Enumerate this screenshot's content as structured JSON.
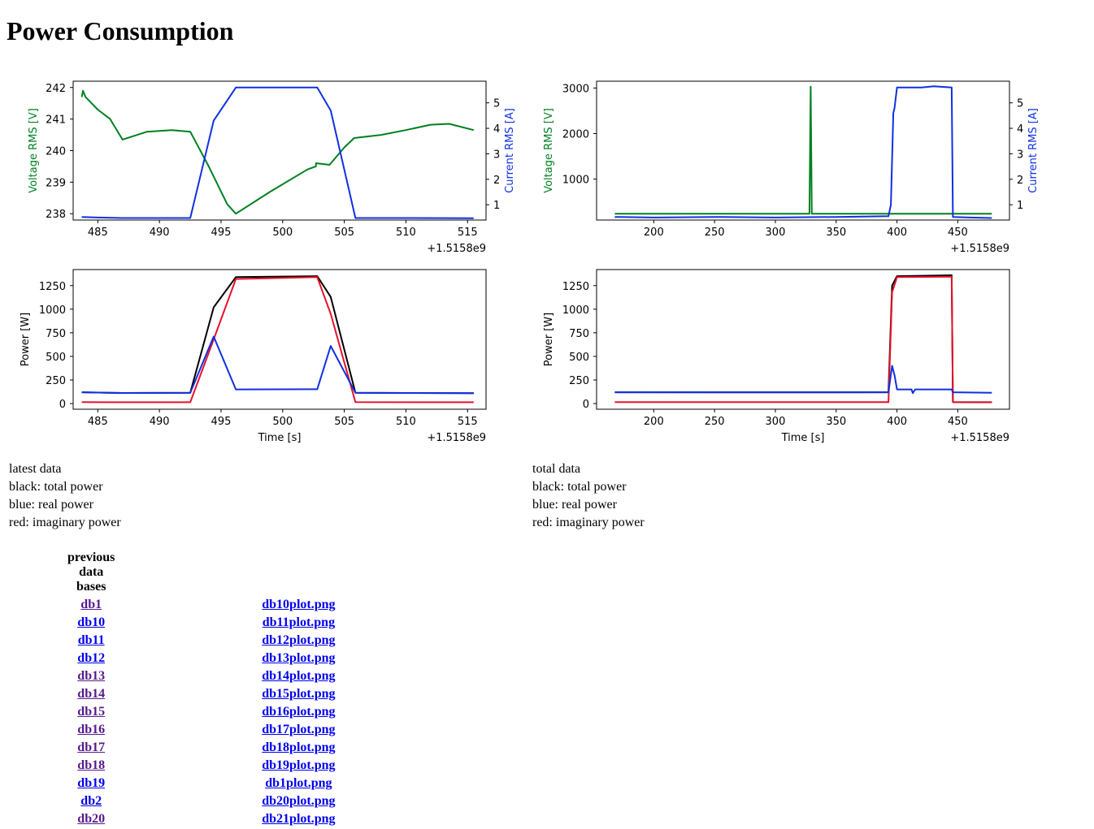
{
  "page": {
    "title": "Power Consumption"
  },
  "colors": {
    "green": "#008020",
    "blue": "#1030e0",
    "red": "#e8102a",
    "black": "#000000",
    "visited": "#551a8b",
    "link": "#0000ee"
  },
  "plots": {
    "latest_voltage": {
      "xlim": [
        483,
        516.5
      ],
      "xticks": [
        485,
        490,
        495,
        500,
        505,
        510,
        515
      ],
      "offset": "+1.5158e9",
      "ylim": [
        237.8,
        242.2
      ],
      "yticks": [
        238,
        239,
        240,
        241,
        242
      ],
      "ylabel": "Voltage RMS [V]",
      "y2lim": [
        0.4,
        5.85
      ],
      "y2ticks": [
        1,
        2,
        3,
        4,
        5
      ],
      "y2label": "Current RMS [A]",
      "voltage": [
        [
          483.7,
          241.7
        ],
        [
          483.8,
          241.9
        ],
        [
          484,
          241.7
        ],
        [
          485,
          241.3
        ],
        [
          486,
          241
        ],
        [
          487,
          240.35
        ],
        [
          489,
          240.6
        ],
        [
          491,
          240.65
        ],
        [
          492.5,
          240.6
        ],
        [
          494,
          239.5
        ],
        [
          495.5,
          238.3
        ],
        [
          496.2,
          238
        ],
        [
          499,
          238.7
        ],
        [
          502,
          239.4
        ],
        [
          502.7,
          239.5
        ],
        [
          502.7,
          239.6
        ],
        [
          503.8,
          239.55
        ],
        [
          505,
          240.1
        ],
        [
          505.8,
          240.4
        ],
        [
          508,
          240.5
        ],
        [
          510,
          240.65
        ],
        [
          512,
          240.82
        ],
        [
          513.5,
          240.85
        ],
        [
          515.5,
          240.65
        ]
      ],
      "current": [
        [
          483.7,
          0.52
        ],
        [
          485,
          0.5
        ],
        [
          487,
          0.48
        ],
        [
          492.5,
          0.48
        ],
        [
          494.4,
          4.3
        ],
        [
          496.2,
          5.6
        ],
        [
          502.8,
          5.6
        ],
        [
          503.9,
          4.7
        ],
        [
          505.9,
          0.48
        ],
        [
          510,
          0.48
        ],
        [
          515.5,
          0.47
        ]
      ]
    },
    "total_voltage": {
      "xlim": [
        153,
        492.5
      ],
      "xticks": [
        200,
        250,
        300,
        350,
        400,
        450
      ],
      "offset": "+1.5158e9",
      "ylim": [
        100,
        3150
      ],
      "yticks": [
        1000,
        2000,
        3000
      ],
      "ylabel": "Voltage RMS [V]",
      "y2lim": [
        0.4,
        5.85
      ],
      "y2ticks": [
        1,
        2,
        3,
        4,
        5
      ],
      "y2label": "Current RMS [A]",
      "voltage": [
        [
          168,
          240
        ],
        [
          328,
          240
        ],
        [
          329,
          3030
        ],
        [
          330,
          240
        ],
        [
          478,
          240
        ]
      ],
      "current": [
        [
          168,
          0.52
        ],
        [
          200,
          0.5
        ],
        [
          250,
          0.52
        ],
        [
          300,
          0.5
        ],
        [
          350,
          0.52
        ],
        [
          393,
          0.55
        ],
        [
          395,
          1
        ],
        [
          397,
          4.6
        ],
        [
          398,
          4.8
        ],
        [
          400,
          5.6
        ],
        [
          420,
          5.6
        ],
        [
          430,
          5.65
        ],
        [
          445,
          5.6
        ],
        [
          446,
          0.52
        ],
        [
          460,
          0.5
        ],
        [
          478,
          0.48
        ]
      ]
    },
    "latest_power": {
      "xlim": [
        483,
        516.5
      ],
      "xticks": [
        485,
        490,
        495,
        500,
        505,
        510,
        515
      ],
      "offset": "+1.5158e9",
      "ylim": [
        -60,
        1420
      ],
      "yticks": [
        0,
        250,
        500,
        750,
        1000,
        1250
      ],
      "ylabel": "Power [W]",
      "xlabel": "Time [s]",
      "total": [
        [
          483.7,
          120
        ],
        [
          487,
          112
        ],
        [
          492.5,
          115
        ],
        [
          494.4,
          1020
        ],
        [
          496.2,
          1340
        ],
        [
          502.8,
          1350
        ],
        [
          503.9,
          1130
        ],
        [
          505.9,
          115
        ],
        [
          510,
          112
        ],
        [
          515.5,
          110
        ]
      ],
      "real": [
        [
          483.7,
          120
        ],
        [
          487,
          112
        ],
        [
          492.5,
          115
        ],
        [
          494.4,
          710
        ],
        [
          496.2,
          150
        ],
        [
          502.8,
          152
        ],
        [
          503.9,
          610
        ],
        [
          505.9,
          115
        ],
        [
          510,
          112
        ],
        [
          515.5,
          110
        ]
      ],
      "imag": [
        [
          483.7,
          15
        ],
        [
          492.5,
          14
        ],
        [
          494.4,
          680
        ],
        [
          496.2,
          1320
        ],
        [
          502.8,
          1340
        ],
        [
          503.9,
          950
        ],
        [
          505.9,
          15
        ],
        [
          515.5,
          14
        ]
      ]
    },
    "total_power": {
      "xlim": [
        153,
        492.5
      ],
      "xticks": [
        200,
        250,
        300,
        350,
        400,
        450
      ],
      "offset": "+1.5158e9",
      "ylim": [
        -60,
        1420
      ],
      "yticks": [
        0,
        250,
        500,
        750,
        1000,
        1250
      ],
      "ylabel": "Power [W]",
      "xlabel": "Time [s]",
      "total": [
        [
          168,
          120
        ],
        [
          393,
          120
        ],
        [
          396,
          1250
        ],
        [
          398,
          1300
        ],
        [
          400,
          1350
        ],
        [
          445,
          1360
        ],
        [
          446,
          15
        ],
        [
          478,
          14
        ]
      ],
      "real": [
        [
          168,
          120
        ],
        [
          250,
          118
        ],
        [
          350,
          118
        ],
        [
          393,
          120
        ],
        [
          396,
          400
        ],
        [
          398,
          300
        ],
        [
          400,
          150
        ],
        [
          412,
          150
        ],
        [
          413,
          110
        ],
        [
          415,
          150
        ],
        [
          445,
          150
        ],
        [
          446,
          120
        ],
        [
          478,
          115
        ]
      ],
      "imag": [
        [
          168,
          15
        ],
        [
          393,
          15
        ],
        [
          396,
          1180
        ],
        [
          400,
          1340
        ],
        [
          445,
          1345
        ],
        [
          446,
          15
        ],
        [
          478,
          14
        ]
      ]
    }
  },
  "latest_notes": [
    "latest data",
    "black: total power",
    "blue: real power",
    "red: imaginary power"
  ],
  "total_notes": [
    "total data",
    "black: total power",
    "blue: real power",
    "red: imaginary power"
  ],
  "db_table": {
    "header": "previous data bases",
    "rows": [
      {
        "db": "db1",
        "plot": "db10plot.png",
        "db_visited": true
      },
      {
        "db": "db10",
        "plot": "db11plot.png",
        "db_visited": false
      },
      {
        "db": "db11",
        "plot": "db12plot.png",
        "db_visited": false
      },
      {
        "db": "db12",
        "plot": "db13plot.png",
        "db_visited": false
      },
      {
        "db": "db13",
        "plot": "db14plot.png",
        "db_visited": true
      },
      {
        "db": "db14",
        "plot": "db15plot.png",
        "db_visited": true
      },
      {
        "db": "db15",
        "plot": "db16plot.png",
        "db_visited": true
      },
      {
        "db": "db16",
        "plot": "db17plot.png",
        "db_visited": true
      },
      {
        "db": "db17",
        "plot": "db18plot.png",
        "db_visited": true
      },
      {
        "db": "db18",
        "plot": "db19plot.png",
        "db_visited": true
      },
      {
        "db": "db19",
        "plot": "db1plot.png",
        "db_visited": false
      },
      {
        "db": "db2",
        "plot": "db20plot.png",
        "db_visited": false
      },
      {
        "db": "db20",
        "plot": "db21plot.png",
        "db_visited": true
      }
    ]
  },
  "chart_data": [
    {
      "type": "line",
      "title": "",
      "xlabel": "",
      "x_offset": "+1.5158e9",
      "ylabel": "Voltage RMS [V]",
      "y2label": "Current RMS [A]",
      "xlim": [
        483,
        516.5
      ],
      "ylim": [
        237.8,
        242.2
      ],
      "y2lim": [
        0.4,
        5.85
      ],
      "series": [
        {
          "name": "Voltage RMS [V]",
          "ref": "plots.latest_voltage.voltage"
        },
        {
          "name": "Current RMS [A]",
          "ref": "plots.latest_voltage.current"
        }
      ]
    },
    {
      "type": "line",
      "title": "",
      "xlabel": "",
      "x_offset": "+1.5158e9",
      "ylabel": "Voltage RMS [V]",
      "y2label": "Current RMS [A]",
      "xlim": [
        153,
        492.5
      ],
      "ylim": [
        100,
        3150
      ],
      "y2lim": [
        0.4,
        5.85
      ],
      "series": [
        {
          "name": "Voltage RMS [V]",
          "ref": "plots.total_voltage.voltage"
        },
        {
          "name": "Current RMS [A]",
          "ref": "plots.total_voltage.current"
        }
      ]
    },
    {
      "type": "line",
      "title": "",
      "xlabel": "Time [s]",
      "x_offset": "+1.5158e9",
      "ylabel": "Power [W]",
      "xlim": [
        483,
        516.5
      ],
      "ylim": [
        -60,
        1420
      ],
      "series": [
        {
          "name": "total power",
          "ref": "plots.latest_power.total"
        },
        {
          "name": "real power",
          "ref": "plots.latest_power.real"
        },
        {
          "name": "imaginary power",
          "ref": "plots.latest_power.imag"
        }
      ]
    },
    {
      "type": "line",
      "title": "",
      "xlabel": "Time [s]",
      "x_offset": "+1.5158e9",
      "ylabel": "Power [W]",
      "xlim": [
        153,
        492.5
      ],
      "ylim": [
        -60,
        1420
      ],
      "series": [
        {
          "name": "total power",
          "ref": "plots.total_power.total"
        },
        {
          "name": "real power",
          "ref": "plots.total_power.real"
        },
        {
          "name": "imaginary power",
          "ref": "plots.total_power.imag"
        }
      ]
    }
  ]
}
